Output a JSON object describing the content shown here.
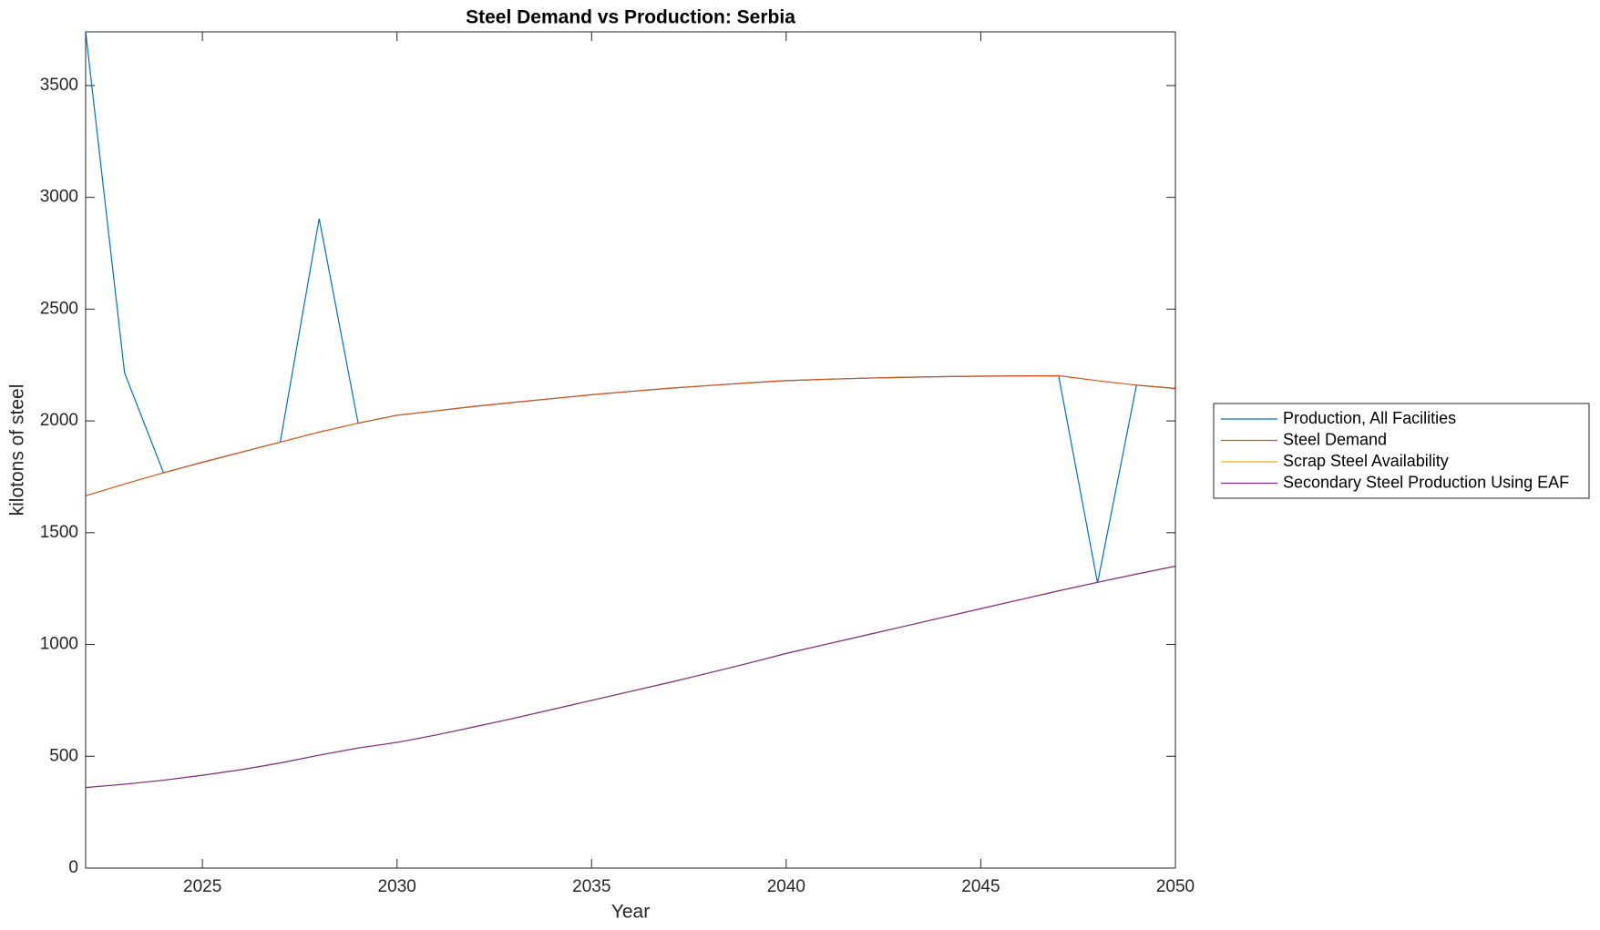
{
  "chart_data": {
    "type": "line",
    "title": "Steel Demand vs Production: Serbia",
    "x_label": "Year",
    "y_label": "kilotons of steel",
    "x": [
      2022,
      2023,
      2024,
      2025,
      2026,
      2027,
      2028,
      2029,
      2030,
      2031,
      2032,
      2033,
      2034,
      2035,
      2036,
      2037,
      2038,
      2039,
      2040,
      2041,
      2042,
      2043,
      2044,
      2045,
      2046,
      2047,
      2048,
      2049,
      2050
    ],
    "xlim": [
      2022,
      2050
    ],
    "xticks": [
      2025,
      2030,
      2035,
      2040,
      2045,
      2050
    ],
    "ylim": [
      0,
      3740
    ],
    "yticks": [
      0,
      500,
      1000,
      1500,
      2000,
      2500,
      3000,
      3500
    ],
    "grid": false,
    "legend": "outside-right",
    "series": [
      {
        "name": "Production, All Facilities",
        "color": "#0072BD",
        "values": [
          3740,
          2215,
          1768,
          1815,
          1860,
          1905,
          2905,
          1990,
          2025,
          2045,
          2065,
          2083,
          2100,
          2117,
          2132,
          2146,
          2158,
          2170,
          2180,
          2186,
          2191,
          2195,
          2198,
          2200,
          2201,
          2202,
          1275,
          2160,
          2145
        ]
      },
      {
        "name": "Steel Demand",
        "color": "#D95319",
        "values": [
          1665,
          1718,
          1768,
          1815,
          1860,
          1905,
          1950,
          1990,
          2025,
          2045,
          2065,
          2083,
          2100,
          2117,
          2132,
          2146,
          2158,
          2170,
          2180,
          2186,
          2191,
          2195,
          2198,
          2200,
          2201,
          2202,
          2180,
          2160,
          2145
        ]
      },
      {
        "name": "Scrap Steel Availability",
        "color": "#EDB120",
        "values": [
          360,
          375,
          393,
          415,
          440,
          470,
          505,
          537,
          562,
          595,
          632,
          670,
          710,
          750,
          790,
          830,
          872,
          915,
          960,
          1000,
          1040,
          1080,
          1120,
          1160,
          1200,
          1240,
          1278,
          1315,
          1350
        ]
      },
      {
        "name": "Secondary Steel Production Using EAF",
        "color": "#7E2F8E",
        "values": [
          360,
          375,
          393,
          415,
          440,
          470,
          505,
          537,
          562,
          595,
          632,
          670,
          710,
          750,
          790,
          830,
          872,
          915,
          960,
          1000,
          1040,
          1080,
          1120,
          1160,
          1200,
          1240,
          1278,
          1315,
          1350
        ]
      }
    ]
  }
}
